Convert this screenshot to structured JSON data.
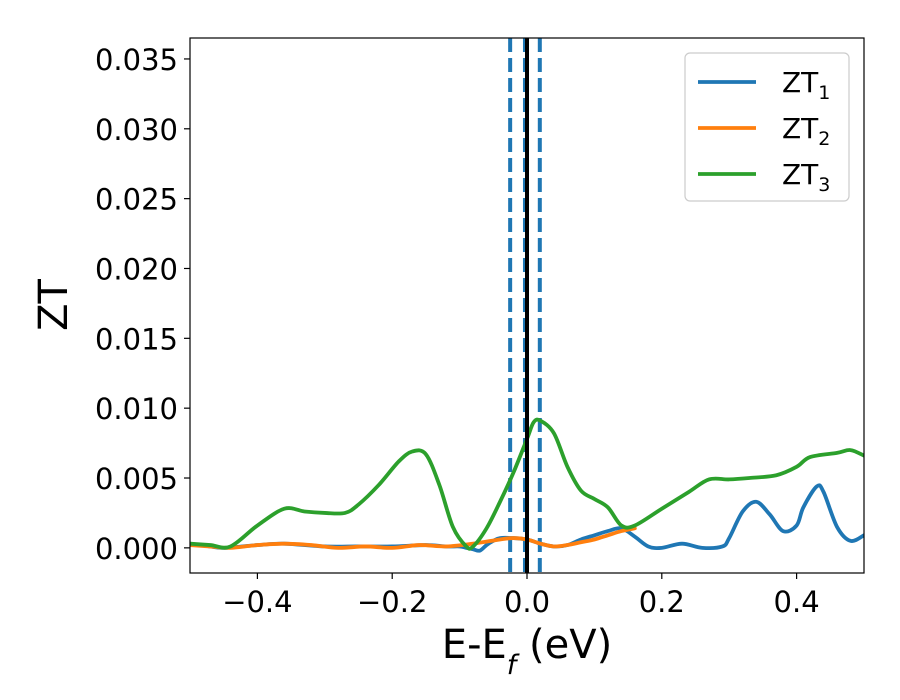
{
  "chart_data": {
    "type": "line",
    "xlabel": "E-E",
    "xlabel_sub": "f",
    "xlabel_unit": " (eV)",
    "ylabel": "ZT",
    "xlim": [
      -0.5,
      0.5
    ],
    "ylim": [
      -0.0018,
      0.0365
    ],
    "xticks": [
      -0.4,
      -0.2,
      0.0,
      0.2,
      0.4
    ],
    "xtick_labels": [
      "−0.4",
      "−0.2",
      "0.0",
      "0.2",
      "0.4"
    ],
    "yticks": [
      0.0,
      0.005,
      0.01,
      0.015,
      0.02,
      0.025,
      0.03,
      0.035
    ],
    "ytick_labels": [
      "0.000",
      "0.005",
      "0.010",
      "0.015",
      "0.020",
      "0.025",
      "0.030",
      "0.035"
    ],
    "grid": false,
    "legend_position": "top-right",
    "vlines": [
      {
        "x": 0.0,
        "color": "#000000",
        "style": "solid"
      },
      {
        "x": -0.025,
        "color": "#1f77b4",
        "style": "dashed"
      },
      {
        "x": -0.003,
        "color": "#1f77b4",
        "style": "dashed"
      },
      {
        "x": 0.019,
        "color": "#1f77b4",
        "style": "dashed"
      }
    ],
    "series": [
      {
        "name": "ZT",
        "name_sub": "1",
        "color": "#1f77b4",
        "x": [
          -0.5,
          -0.47,
          -0.45,
          -0.4,
          -0.36,
          -0.3,
          -0.25,
          -0.2,
          -0.15,
          -0.12,
          -0.1,
          -0.09,
          -0.08,
          -0.07,
          -0.06,
          -0.05,
          -0.04,
          -0.02,
          0.0,
          0.02,
          0.04,
          0.06,
          0.08,
          0.1,
          0.12,
          0.14,
          0.16,
          0.18,
          0.2,
          0.23,
          0.26,
          0.29,
          0.3,
          0.32,
          0.34,
          0.36,
          0.38,
          0.4,
          0.41,
          0.43,
          0.44,
          0.46,
          0.48,
          0.5
        ],
        "y": [
          0.0003,
          0.0001,
          0.0,
          0.0002,
          0.0003,
          0.0001,
          0.0001,
          0.0001,
          0.0002,
          0.0001,
          0.0001,
          0.0,
          -0.0001,
          -0.0002,
          0.0002,
          0.0005,
          0.0007,
          0.0007,
          0.0006,
          0.0003,
          0.0001,
          0.0002,
          0.0006,
          0.0009,
          0.0012,
          0.0014,
          0.0008,
          0.0001,
          0.0,
          0.0003,
          0.0,
          0.0001,
          0.0007,
          0.0026,
          0.0033,
          0.0024,
          0.0012,
          0.0016,
          0.0029,
          0.0044,
          0.004,
          0.0015,
          0.0005,
          0.0009
        ]
      },
      {
        "name": "ZT",
        "name_sub": "2",
        "color": "#ff7f0e",
        "x": [
          -0.5,
          -0.47,
          -0.44,
          -0.4,
          -0.36,
          -0.32,
          -0.28,
          -0.24,
          -0.2,
          -0.16,
          -0.12,
          -0.08,
          -0.04,
          -0.02,
          0.0,
          0.02,
          0.04,
          0.06,
          0.08,
          0.1,
          0.12,
          0.14,
          0.16
        ],
        "y": [
          0.0002,
          0.0001,
          0.0,
          0.0002,
          0.0003,
          0.0002,
          0.0,
          0.0001,
          0.0,
          0.0002,
          0.0001,
          0.0003,
          0.0006,
          0.0007,
          0.0006,
          0.0003,
          0.0001,
          0.0002,
          0.0004,
          0.0006,
          0.0009,
          0.0012,
          0.0014
        ]
      },
      {
        "name": "ZT",
        "name_sub": "3",
        "color": "#2ca02c",
        "x": [
          -0.5,
          -0.47,
          -0.44,
          -0.4,
          -0.36,
          -0.33,
          -0.3,
          -0.27,
          -0.25,
          -0.22,
          -0.19,
          -0.17,
          -0.15,
          -0.13,
          -0.11,
          -0.09,
          -0.08,
          -0.06,
          -0.04,
          -0.02,
          0.0,
          0.01,
          0.02,
          0.04,
          0.06,
          0.08,
          0.1,
          0.12,
          0.14,
          0.16,
          0.2,
          0.24,
          0.27,
          0.3,
          0.33,
          0.37,
          0.4,
          0.42,
          0.46,
          0.48,
          0.5
        ],
        "y": [
          0.0003,
          0.0002,
          0.0001,
          0.0016,
          0.0028,
          0.0026,
          0.0025,
          0.0025,
          0.0031,
          0.0045,
          0.0062,
          0.0069,
          0.0067,
          0.0045,
          0.0015,
          0.0001,
          0.0001,
          0.0014,
          0.0033,
          0.0054,
          0.0078,
          0.009,
          0.0091,
          0.0082,
          0.0058,
          0.0041,
          0.0035,
          0.0029,
          0.0016,
          0.0016,
          0.0028,
          0.004,
          0.0049,
          0.0049,
          0.005,
          0.0052,
          0.0058,
          0.0065,
          0.0068,
          0.007,
          0.0066
        ]
      }
    ]
  }
}
